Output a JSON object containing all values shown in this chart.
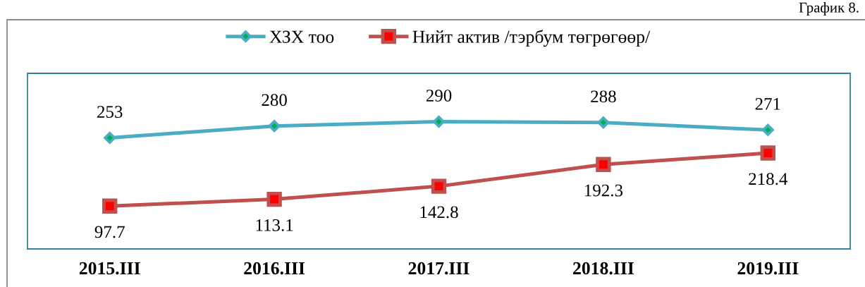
{
  "chart_data": {
    "type": "line",
    "categories": [
      "2015.III",
      "2016.III",
      "2017.III",
      "2018.III",
      "2019.III"
    ],
    "series": [
      {
        "name": "ХЗХ тоо",
        "color": "#4bacc6",
        "colors": [
          "#00b050",
          "#00b050",
          "#00b050",
          "#00b050",
          "#00b050"
        ],
        "marker": "diamond",
        "values": [
          253,
          280,
          290,
          288,
          271
        ]
      },
      {
        "name": "Нийт актив /тэрбум төгрөгөөр/",
        "color": "#c0504d",
        "colors": [
          "#ff0000",
          "#ff0000",
          "#ff0000",
          "#ff0000",
          "#ff0000"
        ],
        "marker": "square",
        "values": [
          97.7,
          113.1,
          142.8,
          192.3,
          218.4
        ]
      }
    ],
    "ylim": [
      0,
      400
    ],
    "tick_labels": "x",
    "data_labels": true,
    "legend": "top",
    "annotations": [
      "График 8."
    ]
  }
}
